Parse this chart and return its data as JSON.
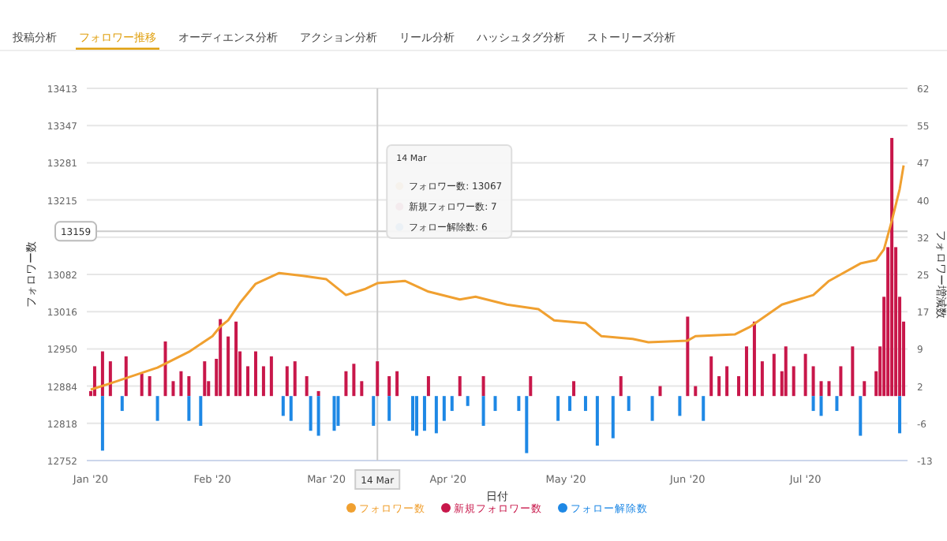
{
  "chart_data": {
    "type": "bar",
    "xlabel": "日付",
    "ylabel": "フォロワー数",
    "y2label": "フォロワー増減数",
    "legend": "bottom",
    "grid": "y",
    "xlim": [
      "2019-12-31",
      "2020-07-27"
    ],
    "xticks": [
      {
        "value": "2020-01-01",
        "label": "Jan '20"
      },
      {
        "value": "2020-02-01",
        "label": "Feb '20"
      },
      {
        "value": "2020-03-01",
        "label": "Mar '20"
      },
      {
        "value": "2020-04-01",
        "label": "Apr '20"
      },
      {
        "value": "2020-05-01",
        "label": "May '20"
      },
      {
        "value": "2020-06-01",
        "label": "Jun '20"
      },
      {
        "value": "2020-07-01",
        "label": "Jul '20"
      }
    ],
    "ylim": [
      12752,
      13413
    ],
    "yticks": [
      12752,
      {
        "value": 12818.1,
        "label": "12818"
      },
      {
        "value": 12884.2,
        "label": "12884"
      },
      {
        "value": 12950.3,
        "label": "12950"
      },
      {
        "value": 13016.4,
        "label": "13016"
      },
      {
        "value": 13082.5,
        "label": "13082"
      },
      {
        "value": 13148.6,
        "label": null
      },
      {
        "value": 13214.7,
        "label": "13215"
      },
      {
        "value": 13280.8,
        "label": "13281"
      },
      {
        "value": 13346.9,
        "label": "13347"
      },
      13413
    ],
    "y2lim": [
      -13,
      62
    ],
    "y2ticks": [
      -13,
      {
        "value": -5.5,
        "label": "-6"
      },
      2,
      {
        "value": 9.5,
        "label": "9"
      },
      17,
      {
        "value": 24.5,
        "label": "25"
      },
      32,
      {
        "value": 39.5,
        "label": "40"
      },
      47,
      {
        "value": 54.5,
        "label": "55"
      },
      62
    ],
    "series": [
      {
        "name": "フォロワー数",
        "type": "line",
        "axis": "y",
        "color": "#f0a030",
        "x": [
          "2020-01-01",
          "2020-01-06",
          "2020-01-18",
          "2020-01-26",
          "2020-02-01",
          "2020-02-03",
          "2020-02-05",
          "2020-02-08",
          "2020-02-12",
          "2020-02-18",
          "2020-02-24",
          "2020-03-01",
          "2020-03-06",
          "2020-03-11",
          "2020-03-14",
          "2020-03-21",
          "2020-03-27",
          "2020-04-04",
          "2020-04-08",
          "2020-04-16",
          "2020-04-24",
          "2020-04-28",
          "2020-05-06",
          "2020-05-10",
          "2020-05-18",
          "2020-05-22",
          "2020-06-01",
          "2020-06-03",
          "2020-06-13",
          "2020-06-17",
          "2020-06-25",
          "2020-07-03",
          "2020-07-07",
          "2020-07-15",
          "2020-07-19",
          "2020-07-21",
          "2020-07-23",
          "2020-07-25",
          "2020-07-26"
        ],
        "values": [
          12878,
          12889,
          12917,
          12945,
          12973,
          12990,
          13001,
          13032,
          13066,
          13085,
          13080,
          13074,
          13046,
          13057,
          13067,
          13071,
          13052,
          13038,
          13043,
          13029,
          13021,
          13001,
          12996,
          12973,
          12968,
          12962,
          12965,
          12973,
          12976,
          12990,
          13029,
          13046,
          13071,
          13102,
          13108,
          13127,
          13178,
          13234,
          13276
        ]
      },
      {
        "name": "新規フォロワー数",
        "axis": "y2",
        "color": "#c8174a",
        "x": [
          "2020-01-01",
          "2020-01-02",
          "2020-01-04",
          "2020-01-06",
          "2020-01-10",
          "2020-01-14",
          "2020-01-16",
          "2020-01-20",
          "2020-01-22",
          "2020-01-24",
          "2020-01-26",
          "2020-01-30",
          "2020-01-31",
          "2020-02-02",
          "2020-02-03",
          "2020-02-05",
          "2020-02-07",
          "2020-02-08",
          "2020-02-10",
          "2020-02-12",
          "2020-02-14",
          "2020-02-16",
          "2020-02-20",
          "2020-02-22",
          "2020-02-25",
          "2020-02-28",
          "2020-03-06",
          "2020-03-08",
          "2020-03-10",
          "2020-03-14",
          "2020-03-17",
          "2020-03-19",
          "2020-03-27",
          "2020-04-04",
          "2020-04-10",
          "2020-04-22",
          "2020-05-03",
          "2020-05-15",
          "2020-05-25",
          "2020-06-01",
          "2020-06-03",
          "2020-06-07",
          "2020-06-09",
          "2020-06-11",
          "2020-06-14",
          "2020-06-16",
          "2020-06-18",
          "2020-06-20",
          "2020-06-23",
          "2020-06-25",
          "2020-06-26",
          "2020-06-28",
          "2020-07-01",
          "2020-07-03",
          "2020-07-05",
          "2020-07-07",
          "2020-07-10",
          "2020-07-13",
          "2020-07-16",
          "2020-07-19",
          "2020-07-20",
          "2020-07-21",
          "2020-07-22",
          "2020-07-23",
          "2020-07-24",
          "2020-07-25",
          "2020-07-26"
        ],
        "values": [
          1,
          6,
          9,
          7,
          8,
          4.5,
          4,
          11,
          3,
          5,
          4,
          7,
          3,
          7.5,
          15.5,
          12,
          15,
          9,
          6,
          9,
          6,
          8,
          6,
          7,
          4,
          1,
          5,
          6.5,
          3,
          7,
          4,
          5,
          4,
          4,
          4,
          4,
          3,
          4,
          2,
          16,
          2,
          8,
          4,
          6,
          4,
          10,
          15,
          7,
          8.5,
          5,
          10,
          6,
          8.5,
          6,
          3,
          3,
          6,
          10,
          3,
          5,
          10,
          20,
          30,
          52,
          30,
          20,
          15
        ]
      },
      {
        "name": "フォロー解除数",
        "axis": "y2",
        "color": "#1e88e5",
        "x": [
          "2020-01-04",
          "2020-01-09",
          "2020-01-18",
          "2020-01-26",
          "2020-01-29",
          "2020-02-19",
          "2020-02-21",
          "2020-02-26",
          "2020-02-28",
          "2020-03-03",
          "2020-03-04",
          "2020-03-13",
          "2020-03-17",
          "2020-03-23",
          "2020-03-24",
          "2020-03-26",
          "2020-03-29",
          "2020-03-31",
          "2020-04-02",
          "2020-04-06",
          "2020-04-10",
          "2020-04-13",
          "2020-04-19",
          "2020-04-21",
          "2020-04-29",
          "2020-05-02",
          "2020-05-06",
          "2020-05-09",
          "2020-05-13",
          "2020-05-17",
          "2020-05-23",
          "2020-05-30",
          "2020-06-05",
          "2020-07-03",
          "2020-07-05",
          "2020-07-09",
          "2020-07-15",
          "2020-07-25"
        ],
        "values": [
          -11,
          -3,
          -5,
          -5,
          -6,
          -4,
          -5,
          -7,
          -8,
          -7,
          -6,
          -6,
          -5,
          -7,
          -8,
          -7,
          -7.5,
          -5,
          -3,
          -2,
          -6,
          -3,
          -3,
          -11.5,
          -5,
          -3,
          -3,
          -10,
          -8.5,
          -3,
          -5,
          -4,
          -5,
          -3,
          -4,
          -3,
          -8,
          -7.5
        ]
      }
    ],
    "ref_lines": [
      {
        "axis": "x",
        "value": "2020-03-14",
        "label": "14 Mar",
        "color": "#cccccc"
      },
      {
        "axis": "y",
        "value": 13159,
        "label": "13159",
        "color": "#cccccc"
      }
    ],
    "annotations": [
      "投稿分析",
      "フォロワー推移",
      "オーディエンス分析",
      "アクション分析",
      "リール分析",
      "ハッシュタグ分析",
      "ストーリーズ分析",
      "14 Mar",
      "フォロワー数: 13067",
      "新規フォロワー数: 7",
      "フォロー解除数: 6"
    ]
  }
}
